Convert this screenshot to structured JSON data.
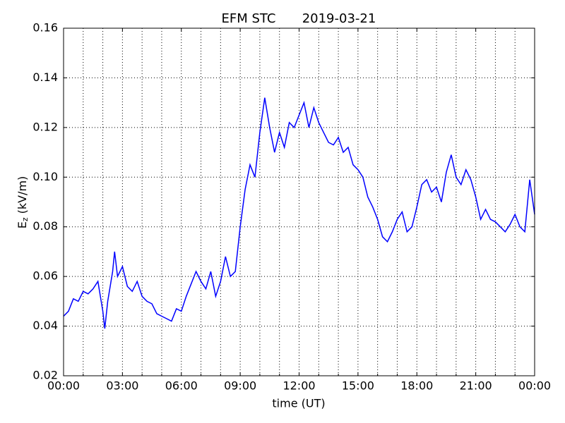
{
  "chart_data": {
    "type": "line",
    "title": "EFM STC",
    "subtitle": "2019-03-21",
    "xlabel": "time (UT)",
    "ylabel": [
      "E",
      "z",
      "(kV/m)"
    ],
    "xlim": [
      0,
      24
    ],
    "xticks": [
      {
        "value": 0,
        "label": "00:00"
      },
      {
        "value": 3,
        "label": "03:00"
      },
      {
        "value": 6,
        "label": "06:00"
      },
      {
        "value": 9,
        "label": "09:00"
      },
      {
        "value": 12,
        "label": "12:00"
      },
      {
        "value": 15,
        "label": "15:00"
      },
      {
        "value": 18,
        "label": "18:00"
      },
      {
        "value": 21,
        "label": "21:00"
      },
      {
        "value": 24,
        "label": "00:00"
      }
    ],
    "xminorticks": [
      1,
      2,
      4,
      5,
      7,
      8,
      10,
      11,
      13,
      14,
      16,
      17,
      19,
      20,
      22,
      23
    ],
    "ylim": [
      0.02,
      0.16
    ],
    "yticks": [
      0.02,
      0.04,
      0.06,
      0.08,
      {
        "value": 0.1,
        "label": "0.10"
      },
      0.12,
      0.14,
      0.16
    ],
    "grid": true,
    "series": [
      {
        "color": "#0000ff",
        "x": [
          0,
          0.25,
          0.5,
          0.75,
          1,
          1.25,
          1.5,
          1.75,
          2,
          2.1,
          2.25,
          2.5,
          2.6,
          2.75,
          3,
          3.25,
          3.5,
          3.75,
          4,
          4.25,
          4.5,
          4.75,
          5,
          5.25,
          5.5,
          5.75,
          6,
          6.25,
          6.5,
          6.75,
          7,
          7.25,
          7.5,
          7.75,
          8,
          8.25,
          8.5,
          8.75,
          9,
          9.25,
          9.5,
          9.75,
          10,
          10.25,
          10.5,
          10.75,
          11,
          11.25,
          11.5,
          11.75,
          12,
          12.25,
          12.5,
          12.75,
          13,
          13.25,
          13.5,
          13.75,
          14,
          14.25,
          14.5,
          14.75,
          15,
          15.25,
          15.5,
          15.75,
          16,
          16.25,
          16.5,
          16.75,
          17,
          17.25,
          17.5,
          17.75,
          18,
          18.25,
          18.5,
          18.75,
          19,
          19.25,
          19.5,
          19.75,
          20,
          20.25,
          20.5,
          20.75,
          21,
          21.25,
          21.5,
          21.75,
          22,
          22.25,
          22.5,
          22.75,
          23,
          23.25,
          23.5,
          23.75,
          24
        ],
        "values": [
          0.044,
          0.046,
          0.051,
          0.05,
          0.054,
          0.053,
          0.055,
          0.058,
          0.046,
          0.039,
          0.05,
          0.062,
          0.07,
          0.06,
          0.064,
          0.056,
          0.054,
          0.058,
          0.052,
          0.05,
          0.049,
          0.045,
          0.044,
          0.043,
          0.042,
          0.047,
          0.046,
          0.052,
          0.057,
          0.062,
          0.058,
          0.055,
          0.062,
          0.052,
          0.058,
          0.068,
          0.06,
          0.062,
          0.08,
          0.095,
          0.105,
          0.1,
          0.118,
          0.132,
          0.12,
          0.11,
          0.118,
          0.112,
          0.122,
          0.12,
          0.125,
          0.13,
          0.12,
          0.128,
          0.122,
          0.118,
          0.114,
          0.113,
          0.116,
          0.11,
          0.112,
          0.105,
          0.103,
          0.1,
          0.092,
          0.088,
          0.083,
          0.076,
          0.074,
          0.078,
          0.083,
          0.086,
          0.078,
          0.08,
          0.088,
          0.097,
          0.099,
          0.094,
          0.096,
          0.09,
          0.102,
          0.109,
          0.1,
          0.097,
          0.103,
          0.099,
          0.092,
          0.083,
          0.087,
          0.083,
          0.082,
          0.08,
          0.078,
          0.081,
          0.085,
          0.08,
          0.078,
          0.099,
          0.085
        ]
      }
    ]
  }
}
